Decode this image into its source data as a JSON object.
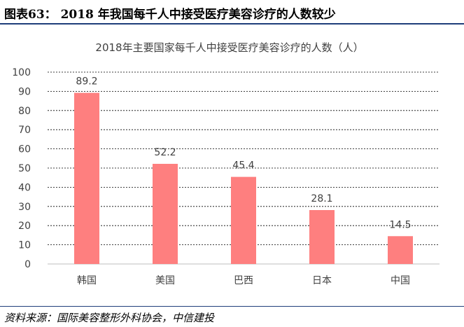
{
  "header": {
    "title": "图表63： 2018 年我国每千人中接受医疗美容诊疗的人数较少"
  },
  "footer": {
    "source": "资料来源：国际美容整形外科协会，中信建投"
  },
  "colors": {
    "bar": "#fe7f7f",
    "rule": "#1f3e7a",
    "grid": "#000000",
    "text": "#404040"
  },
  "chart_data": {
    "type": "bar",
    "title": "2018年主要国家每千人中接受医疗美容诊疗的人数（人）",
    "categories": [
      "韩国",
      "美国",
      "巴西",
      "日本",
      "中国"
    ],
    "values": [
      89.2,
      52.2,
      45.4,
      28.1,
      14.5
    ],
    "data_labels": [
      "89.2",
      "52.2",
      "45.4",
      "28.1",
      "14.5"
    ],
    "ylim": [
      0,
      100
    ],
    "yticks": [
      0,
      10,
      20,
      30,
      40,
      50,
      60,
      70,
      80,
      90,
      100
    ],
    "grid": true,
    "xlabel": "",
    "ylabel": ""
  }
}
